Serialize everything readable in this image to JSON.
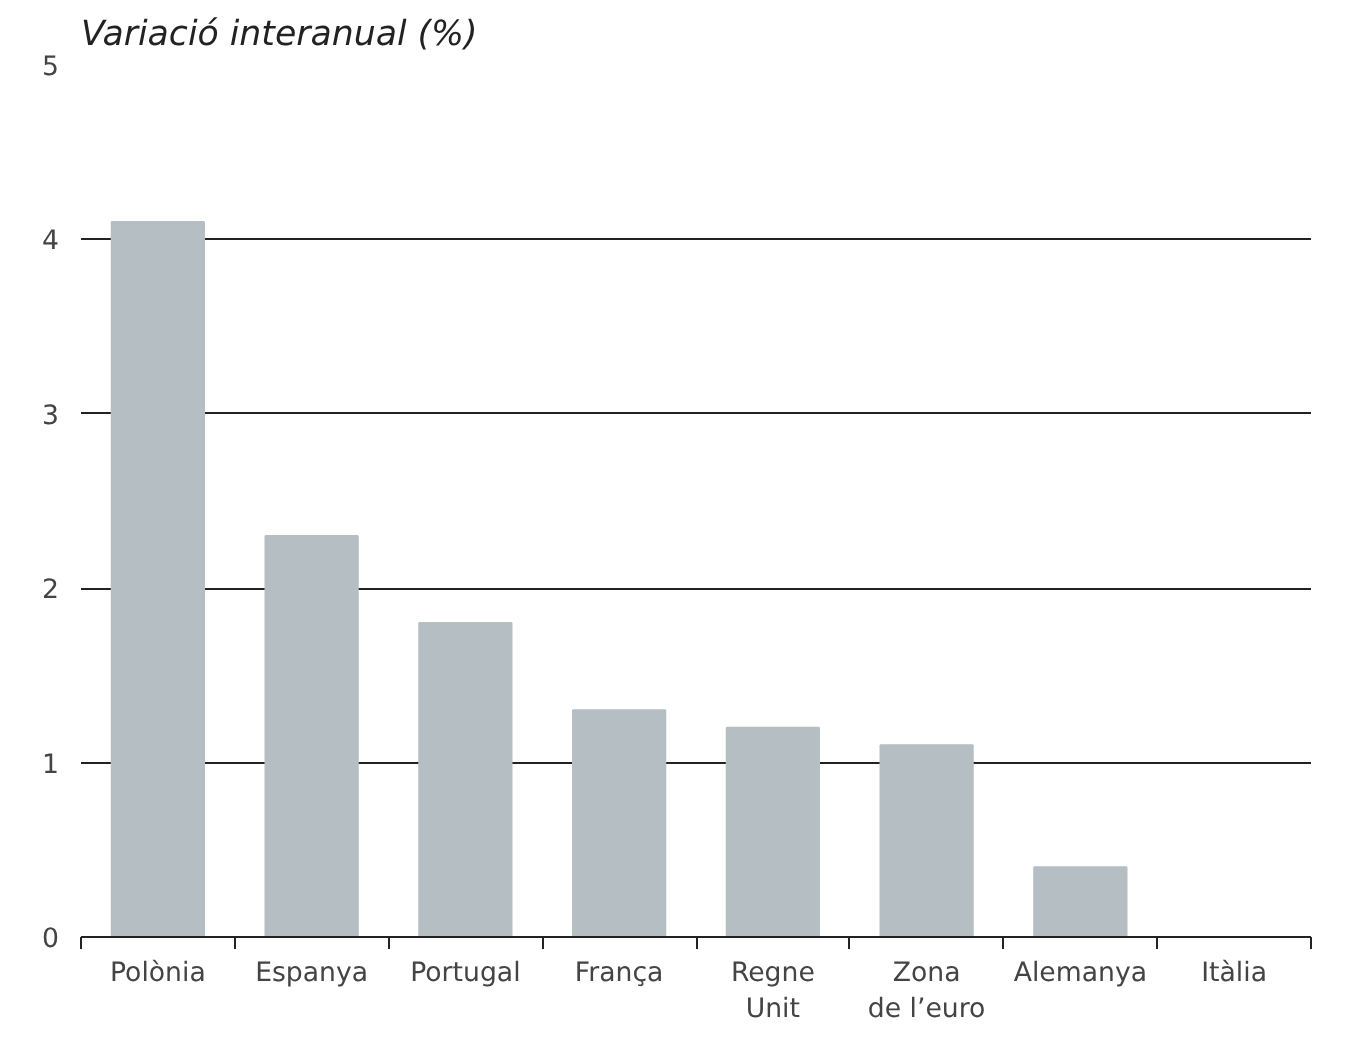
{
  "chart_data": {
    "type": "bar",
    "title": "Variació interanual (%)",
    "categories": [
      "Polònia",
      "Espanya",
      "Portugal",
      "França",
      "Regne Unit",
      "Zona de l’euro",
      "Alemanya",
      "Itàlia"
    ],
    "values": [
      4.1,
      2.3,
      1.8,
      1.3,
      1.2,
      1.1,
      0.4,
      0
    ],
    "color": "#b4bec3",
    "ylim": [
      0,
      5
    ],
    "yticks": [
      0,
      1,
      2,
      3,
      4,
      5
    ],
    "grid": "y"
  }
}
